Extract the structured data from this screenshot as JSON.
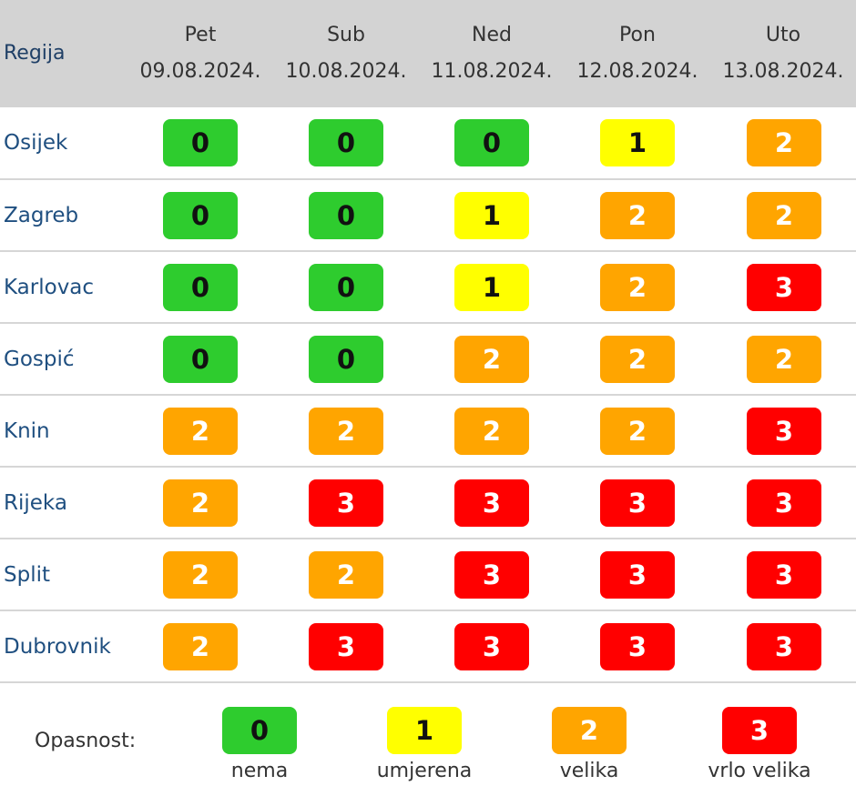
{
  "header": {
    "region_label": "Regija",
    "days": [
      {
        "name": "Pet",
        "date": "09.08.2024."
      },
      {
        "name": "Sub",
        "date": "10.08.2024."
      },
      {
        "name": "Ned",
        "date": "11.08.2024."
      },
      {
        "name": "Pon",
        "date": "12.08.2024."
      },
      {
        "name": "Uto",
        "date": "13.08.2024."
      }
    ]
  },
  "rows": [
    {
      "region": "Osijek",
      "levels": [
        "0",
        "0",
        "0",
        "1",
        "2"
      ]
    },
    {
      "region": "Zagreb",
      "levels": [
        "0",
        "0",
        "1",
        "2",
        "2"
      ]
    },
    {
      "region": "Karlovac",
      "levels": [
        "0",
        "0",
        "1",
        "2",
        "3"
      ]
    },
    {
      "region": "Gospić",
      "levels": [
        "0",
        "0",
        "2",
        "2",
        "2"
      ]
    },
    {
      "region": "Knin",
      "levels": [
        "2",
        "2",
        "2",
        "2",
        "3"
      ]
    },
    {
      "region": "Rijeka",
      "levels": [
        "2",
        "3",
        "3",
        "3",
        "3"
      ]
    },
    {
      "region": "Split",
      "levels": [
        "2",
        "2",
        "3",
        "3",
        "3"
      ]
    },
    {
      "region": "Dubrovnik",
      "levels": [
        "2",
        "3",
        "3",
        "3",
        "3"
      ]
    }
  ],
  "level_colors": {
    "0": {
      "bg": "#2ecc2e",
      "fg": "#111111"
    },
    "1": {
      "bg": "#ffff00",
      "fg": "#111111"
    },
    "2": {
      "bg": "#ffa500",
      "fg": "#ffffff"
    },
    "3": {
      "bg": "#ff0000",
      "fg": "#ffffff"
    }
  },
  "legend": {
    "label": "Opasnost:",
    "items": [
      {
        "level": "0",
        "text": "nema"
      },
      {
        "level": "1",
        "text": "umjerena"
      },
      {
        "level": "2",
        "text": "velika"
      },
      {
        "level": "3",
        "text": "vrlo velika"
      }
    ]
  }
}
